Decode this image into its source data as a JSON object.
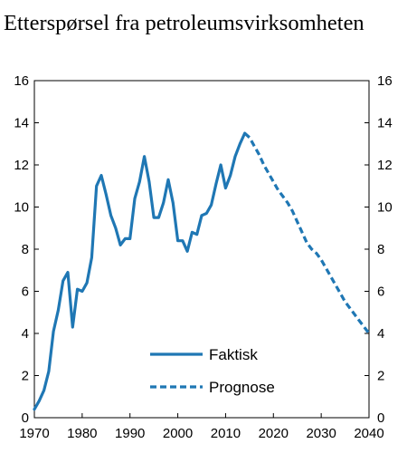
{
  "chart_data": {
    "type": "line",
    "title": "Etterspørsel fra petroleumsvirksomheten",
    "xlabel": "",
    "ylabel": "",
    "xlim": [
      1970,
      2040
    ],
    "ylim": [
      0,
      16
    ],
    "x_ticks": [
      "1970",
      "1980",
      "1990",
      "2000",
      "2010",
      "2020",
      "2030",
      "2040"
    ],
    "y_ticks": [
      "0",
      "2",
      "4",
      "6",
      "8",
      "10",
      "12",
      "14",
      "16"
    ],
    "y_ticks_right": true,
    "grid": false,
    "legend_position": "lower-center",
    "color": "#1f77b4",
    "series": [
      {
        "name": "Faktisk",
        "style": "solid",
        "x": [
          1970,
          1971,
          1972,
          1973,
          1974,
          1975,
          1976,
          1977,
          1978,
          1979,
          1980,
          1981,
          1982,
          1983,
          1984,
          1985,
          1986,
          1987,
          1988,
          1989,
          1990,
          1991,
          1992,
          1993,
          1994,
          1995,
          1996,
          1997,
          1998,
          1999,
          2000,
          2001,
          2002,
          2003,
          2004,
          2005,
          2006,
          2007,
          2008,
          2009,
          2010,
          2011,
          2012,
          2013,
          2014
        ],
        "y": [
          0.4,
          0.8,
          1.3,
          2.2,
          4.1,
          5.1,
          6.5,
          6.9,
          4.3,
          6.1,
          6.0,
          6.4,
          7.6,
          11.0,
          11.5,
          10.6,
          9.6,
          9.0,
          8.2,
          8.5,
          8.5,
          10.4,
          11.2,
          12.4,
          11.2,
          9.5,
          9.5,
          10.2,
          11.3,
          10.2,
          8.4,
          8.4,
          7.9,
          8.8,
          8.7,
          9.6,
          9.7,
          10.1,
          11.1,
          12.0,
          10.9,
          11.5,
          12.4,
          13.0,
          13.5
        ]
      },
      {
        "name": "Prognose",
        "style": "dashed",
        "x": [
          2014,
          2015,
          2016,
          2017,
          2018,
          2019,
          2020,
          2021,
          2022,
          2023,
          2024,
          2025,
          2026,
          2027,
          2028,
          2029,
          2030,
          2031,
          2032,
          2033,
          2034,
          2035,
          2036,
          2037,
          2038,
          2039,
          2040
        ],
        "y": [
          13.5,
          13.3,
          12.9,
          12.5,
          12.0,
          11.6,
          11.2,
          10.8,
          10.5,
          10.2,
          9.8,
          9.3,
          8.8,
          8.3,
          8.0,
          7.8,
          7.5,
          7.1,
          6.7,
          6.3,
          5.9,
          5.5,
          5.2,
          4.9,
          4.6,
          4.3,
          4.0
        ]
      }
    ]
  }
}
